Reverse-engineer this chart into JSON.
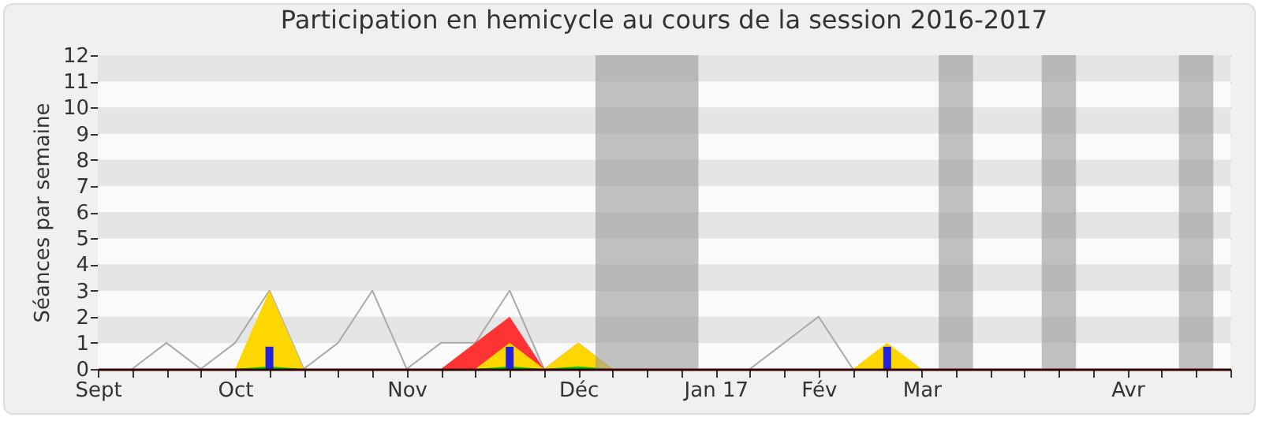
{
  "chart_data": {
    "type": "area",
    "title": "Participation en hemicycle au cours de la session 2016-2017",
    "ylabel": "Séances par semaine",
    "categories": [
      "Sept",
      null,
      null,
      null,
      "Oct",
      null,
      null,
      null,
      null,
      "Nov",
      null,
      null,
      null,
      null,
      "Déc",
      null,
      null,
      null,
      "Jan 17",
      null,
      null,
      "Fév",
      null,
      null,
      "Mar",
      null,
      null,
      null,
      null,
      null,
      "Avr",
      null,
      null,
      null
    ],
    "series": [
      {
        "type": "line",
        "color": "#aaaaaa",
        "values": [
          null,
          0,
          1,
          0,
          1,
          3,
          0,
          1,
          3,
          0,
          1,
          1,
          3,
          0,
          null,
          null,
          null,
          null,
          null,
          0,
          1,
          2,
          0,
          null,
          null,
          null,
          null,
          null,
          null,
          null,
          null,
          null,
          null,
          null
        ]
      },
      {
        "color": "#ff3333",
        "values": [
          null,
          null,
          null,
          null,
          null,
          null,
          null,
          null,
          null,
          null,
          0,
          1,
          2,
          0,
          1,
          0,
          null,
          null,
          null,
          null,
          null,
          null,
          null,
          null,
          null,
          null,
          null,
          null,
          null,
          null,
          null,
          null,
          null,
          null
        ]
      },
      {
        "color": "#ffd700",
        "values": [
          null,
          null,
          null,
          null,
          0,
          3,
          0,
          null,
          null,
          null,
          null,
          0,
          1,
          0,
          1,
          0,
          null,
          null,
          null,
          null,
          null,
          null,
          0,
          1,
          0,
          null,
          null,
          null,
          null,
          null,
          null,
          null,
          null,
          null
        ]
      },
      {
        "color": "#00cc00",
        "values": [
          null,
          null,
          null,
          null,
          0,
          0.1,
          0,
          null,
          null,
          null,
          null,
          0,
          0.1,
          0,
          0.1,
          0,
          null,
          null,
          null,
          null,
          null,
          null,
          null,
          null,
          null,
          null,
          null,
          null,
          null,
          null,
          null,
          null,
          null,
          null
        ]
      },
      {
        "type": "bar",
        "color": "#2222dd",
        "values": [
          null,
          null,
          null,
          null,
          null,
          0.85,
          null,
          null,
          null,
          null,
          null,
          null,
          0.85,
          null,
          null,
          null,
          null,
          null,
          null,
          null,
          null,
          null,
          null,
          0.85,
          null,
          null,
          null,
          null,
          null,
          null,
          null,
          null,
          null,
          null
        ]
      }
    ],
    "ylim": [
      0,
      12
    ],
    "yticks": [
      0,
      1,
      2,
      3,
      4,
      5,
      6,
      7,
      8,
      9,
      10,
      11,
      12
    ],
    "grid": "y"
  }
}
